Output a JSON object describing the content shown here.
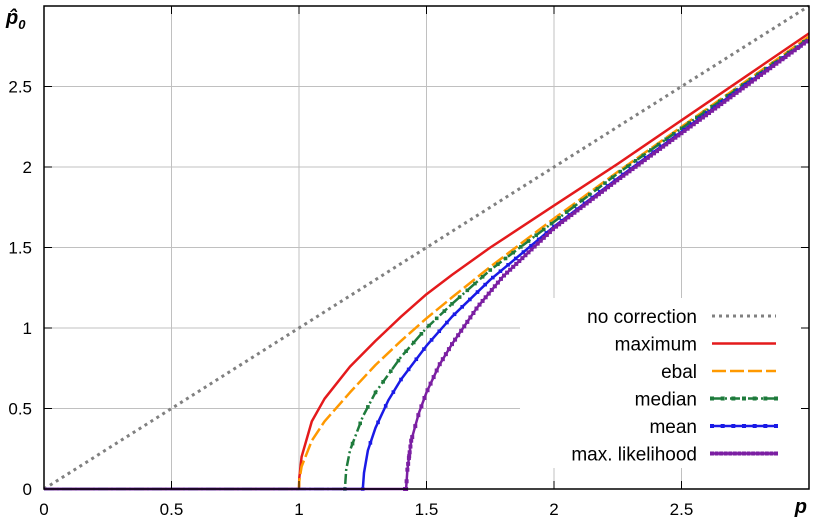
{
  "chart_data": {
    "type": "line",
    "xlabel": "p",
    "ylabel": "p̂",
    "ylabel_sub": "0",
    "xlim": [
      0,
      3
    ],
    "ylim": [
      0,
      3
    ],
    "grid": true,
    "legend_position": "bottom-right",
    "x_ticks": [
      0,
      0.5,
      1,
      1.5,
      2,
      2.5
    ],
    "x_tick_labels": [
      "0",
      "0.5",
      "1",
      "1.5",
      "2",
      "2.5"
    ],
    "y_ticks": [
      0,
      0.5,
      1,
      1.5,
      2,
      2.5
    ],
    "y_tick_labels": [
      "0",
      "0.5",
      "1",
      "1.5",
      "2",
      "2.5"
    ],
    "series": [
      {
        "name": "no correction",
        "color": "#808080",
        "style": "dotted",
        "threshold": 0,
        "x": [
          0,
          3
        ],
        "y": [
          0,
          3
        ]
      },
      {
        "name": "maximum",
        "color": "#e41a1c",
        "style": "solid",
        "threshold": 1.0,
        "x": [
          0,
          1.0,
          1.001,
          1.01,
          1.05,
          1.1,
          1.2,
          1.3,
          1.4,
          1.5,
          1.6,
          1.75,
          2.0,
          2.25,
          2.5,
          2.75,
          3.0
        ],
        "y": [
          0,
          0,
          0.07,
          0.2,
          0.42,
          0.56,
          0.76,
          0.92,
          1.07,
          1.21,
          1.33,
          1.5,
          1.76,
          2.02,
          2.29,
          2.56,
          2.83
        ]
      },
      {
        "name": "ebal",
        "color": "#ff9900",
        "style": "dashed",
        "threshold": 1.0,
        "x": [
          0,
          1.0,
          1.001,
          1.01,
          1.05,
          1.1,
          1.2,
          1.3,
          1.4,
          1.5,
          1.6,
          1.75,
          2.0,
          2.25,
          2.5,
          2.75,
          3.0
        ],
        "y": [
          0,
          0,
          0.05,
          0.14,
          0.3,
          0.42,
          0.6,
          0.77,
          0.92,
          1.06,
          1.19,
          1.38,
          1.68,
          1.97,
          2.25,
          2.53,
          2.81
        ]
      },
      {
        "name": "median",
        "color": "#1e7b3c",
        "style": "dash-dot",
        "threshold": 1.18,
        "x": [
          0,
          1.18,
          1.185,
          1.2,
          1.25,
          1.3,
          1.4,
          1.5,
          1.6,
          1.75,
          2.0,
          2.25,
          2.5,
          2.75,
          3.0
        ],
        "y": [
          0,
          0,
          0.12,
          0.24,
          0.45,
          0.6,
          0.82,
          1.0,
          1.15,
          1.36,
          1.66,
          1.96,
          2.24,
          2.52,
          2.8
        ]
      },
      {
        "name": "mean",
        "color": "#1a1ae6",
        "style": "solid-points",
        "threshold": 1.25,
        "x": [
          0,
          1.25,
          1.255,
          1.27,
          1.3,
          1.35,
          1.4,
          1.5,
          1.6,
          1.75,
          2.0,
          2.25,
          2.5,
          2.75,
          3.0
        ],
        "y": [
          0,
          0,
          0.1,
          0.24,
          0.38,
          0.55,
          0.68,
          0.89,
          1.07,
          1.3,
          1.63,
          1.93,
          2.22,
          2.51,
          2.79
        ]
      },
      {
        "name": "max. likelihood",
        "color": "#7b1fa2",
        "style": "dotted-points",
        "threshold": 1.42,
        "x": [
          0,
          1.42,
          1.425,
          1.44,
          1.47,
          1.5,
          1.55,
          1.6,
          1.7,
          1.8,
          2.0,
          2.25,
          2.5,
          2.75,
          3.0
        ],
        "y": [
          0,
          0,
          0.12,
          0.3,
          0.47,
          0.6,
          0.77,
          0.9,
          1.13,
          1.32,
          1.62,
          1.92,
          2.21,
          2.5,
          2.79
        ]
      }
    ]
  }
}
